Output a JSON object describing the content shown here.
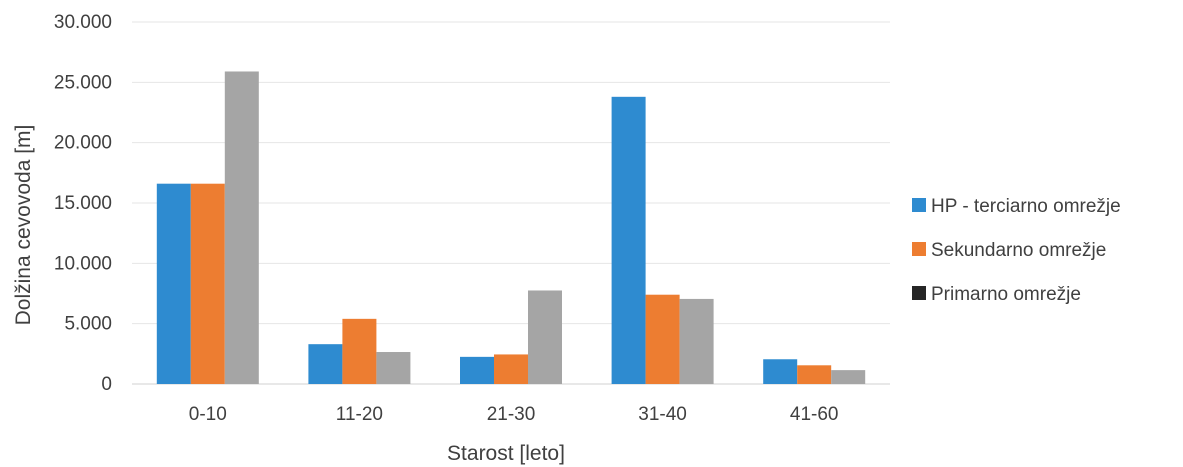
{
  "chart_data": {
    "type": "bar",
    "title": "",
    "xlabel": "Starost [leto]",
    "ylabel": "Dolžina cevovoda [m]",
    "categories": [
      "0-10",
      "11-20",
      "21-30",
      "31-40",
      "41-60"
    ],
    "ylim": [
      0,
      30000
    ],
    "yticks": [
      0,
      5000,
      10000,
      15000,
      20000,
      25000,
      30000
    ],
    "ytick_labels": [
      "0",
      "5.000",
      "10.000",
      "15.000",
      "20.000",
      "25.000",
      "30.000"
    ],
    "grid": true,
    "legend_position": "right",
    "series": [
      {
        "name": "HP - terciarno omrežje",
        "color": "#2E8BD0",
        "values": [
          16600,
          3300,
          2250,
          23800,
          2050
        ]
      },
      {
        "name": "Sekundarno omrežje",
        "color": "#ED7D31",
        "values": [
          16600,
          5400,
          2450,
          7400,
          1550
        ]
      },
      {
        "name": "Primarno omrežje",
        "color": "#A5A5A5",
        "legend_color": "#262626",
        "values": [
          25900,
          2650,
          7750,
          7050,
          1150
        ]
      }
    ]
  }
}
